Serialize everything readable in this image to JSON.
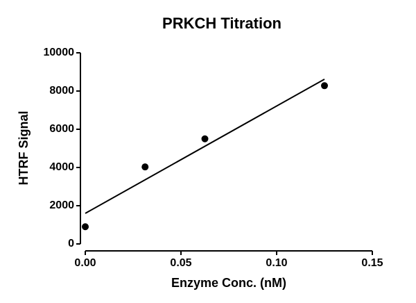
{
  "chart_data": {
    "type": "scatter",
    "title": "PRKCH Titration",
    "x_label": "Enzyme Conc. (nM)",
    "y_label": "HTRF Signal",
    "points": {
      "x": [
        0,
        0.03125,
        0.0625,
        0.125
      ],
      "values": [
        900,
        4030,
        5500,
        8280
      ],
      "color": "#000000"
    },
    "fit": {
      "x": [
        0,
        0.125
      ],
      "values": [
        1600,
        8620
      ],
      "color": "#000000"
    },
    "xlim": [
      0,
      0.15
    ],
    "ylim": [
      0,
      10000
    ],
    "xticks": [
      {
        "value": 0,
        "label": "0.00"
      },
      {
        "value": 0.05,
        "label": "0.05"
      },
      {
        "value": 0.1,
        "label": "0.10"
      },
      {
        "value": 0.15,
        "label": "0.15"
      }
    ],
    "yticks": [
      0,
      2000,
      4000,
      6000,
      8000,
      10000
    ]
  }
}
